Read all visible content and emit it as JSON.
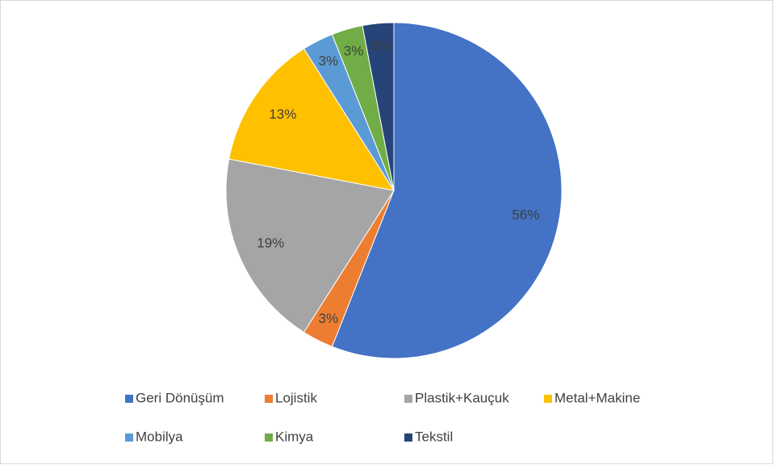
{
  "chart_data": {
    "type": "pie",
    "categories": [
      "Geri Dönüşüm",
      "Lojistik",
      "Plastik+Kauçuk",
      "Metal+Makine",
      "Mobilya",
      "Kimya",
      "Tekstil"
    ],
    "values": [
      56,
      3,
      19,
      13,
      3,
      3,
      3
    ],
    "value_labels": [
      "56%",
      "3%",
      "19%",
      "13%",
      "3%",
      "3%",
      "3%"
    ],
    "colors": [
      "#4472c4",
      "#ed7d31",
      "#a5a5a5",
      "#ffc000",
      "#5b9bd5",
      "#70ad47",
      "#264478"
    ],
    "legend": "bottom"
  }
}
